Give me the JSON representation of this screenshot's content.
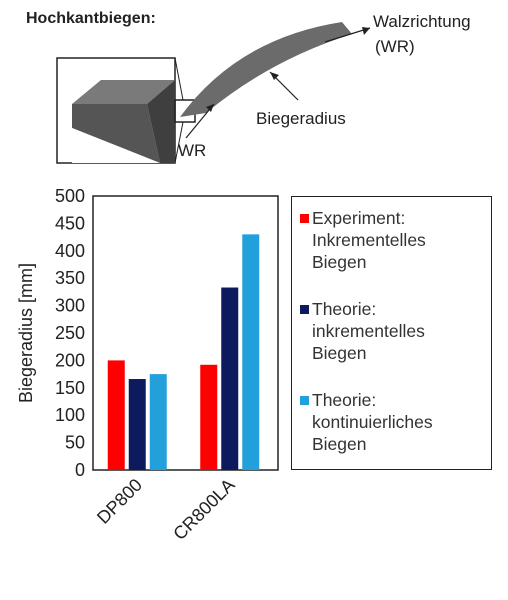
{
  "diagram": {
    "heading": "Hochkantbiegen:",
    "label_rolling": "Walzrichtung",
    "label_rolling_abbr": "(WR)",
    "label_radius": "Biegeradius",
    "label_wr": "WR"
  },
  "chart_data": {
    "type": "bar",
    "categories": [
      "DP800",
      "CR800LA"
    ],
    "ylabel": "Biegeradius [mm]",
    "ylim": [
      0,
      500
    ],
    "yticks": [
      "0",
      "50",
      "100",
      "150",
      "200",
      "250",
      "300",
      "350",
      "400",
      "450",
      "500"
    ],
    "grid": false,
    "legend_position": "right",
    "series": [
      {
        "name": "Experiment: Inkrementelles Biegen",
        "name_lines": [
          "Experiment:",
          "Inkrementelles",
          "Biegen"
        ],
        "color": "#FF0000",
        "values": [
          200,
          192
        ]
      },
      {
        "name": "Theorie: inkrementelles Biegen",
        "name_lines": [
          "Theorie:",
          "inkrementelles",
          "Biegen"
        ],
        "color": "#0D1A5E",
        "values": [
          166,
          333
        ]
      },
      {
        "name": "Theorie: kontinuierliches Biegen",
        "name_lines": [
          "Theorie:",
          "kontinuierliches",
          "Biegen"
        ],
        "color": "#22A0DC",
        "values": [
          175,
          430
        ]
      }
    ]
  }
}
